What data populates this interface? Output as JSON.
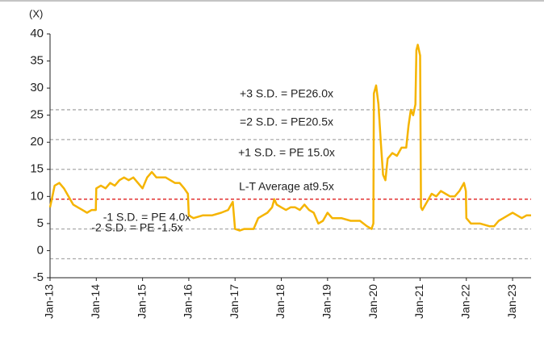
{
  "chart_data": {
    "type": "line",
    "unit_label": "(X)",
    "xlim": [
      2013,
      2023.4
    ],
    "xticks": [
      {
        "value": 2013,
        "label": "Jan-13"
      },
      {
        "value": 2014,
        "label": "Jan-14"
      },
      {
        "value": 2015,
        "label": "Jan-15"
      },
      {
        "value": 2016,
        "label": "Jan-16"
      },
      {
        "value": 2017,
        "label": "Jan-17"
      },
      {
        "value": 2018,
        "label": "Jan-18"
      },
      {
        "value": 2019,
        "label": "Jan-19"
      },
      {
        "value": 2020,
        "label": "Jan-20"
      },
      {
        "value": 2021,
        "label": "Jan-21"
      },
      {
        "value": 2022,
        "label": "Jan-22"
      },
      {
        "value": 2023,
        "label": "Jan-23"
      }
    ],
    "ylim": [
      -5,
      40
    ],
    "yticks": [
      -5,
      0,
      5,
      10,
      15,
      20,
      25,
      30,
      35,
      40
    ],
    "reference_lines": [
      {
        "label": "+3 S.D. = PE26.0x",
        "value": 26.0,
        "color": "#aaaaaa"
      },
      {
        "label": "=2 S.D. = PE20.5x",
        "value": 20.5,
        "color": "#aaaaaa"
      },
      {
        "label": "+1 S.D. = PE 15.0x",
        "value": 15.0,
        "color": "#aaaaaa"
      },
      {
        "label": "L-T Average at9.5x",
        "value": 9.5,
        "color": "#e02020"
      },
      {
        "label": "-1 S.D. = PE 4.0x",
        "value": 4.0,
        "color": "#aaaaaa"
      },
      {
        "label": "-2 S.D. = PE -1.5x",
        "value": -1.5,
        "color": "#aaaaaa"
      }
    ],
    "series": [
      {
        "color": "#f5b400",
        "x": [
          2013.0,
          2013.05,
          2013.1,
          2013.2,
          2013.3,
          2013.4,
          2013.5,
          2013.6,
          2013.7,
          2013.8,
          2013.9,
          2013.99,
          2014.0,
          2014.1,
          2014.2,
          2014.3,
          2014.4,
          2014.5,
          2014.6,
          2014.7,
          2014.8,
          2014.9,
          2015.0,
          2015.1,
          2015.2,
          2015.3,
          2015.4,
          2015.5,
          2015.6,
          2015.7,
          2015.8,
          2015.9,
          2015.98,
          2016.0,
          2016.1,
          2016.3,
          2016.5,
          2016.7,
          2016.85,
          2016.95,
          2017.0,
          2017.1,
          2017.2,
          2017.4,
          2017.5,
          2017.6,
          2017.7,
          2017.8,
          2017.85,
          2017.9,
          2018.0,
          2018.1,
          2018.2,
          2018.3,
          2018.4,
          2018.5,
          2018.6,
          2018.7,
          2018.8,
          2018.9,
          2019.0,
          2019.1,
          2019.3,
          2019.5,
          2019.7,
          2019.85,
          2019.95,
          2019.99,
          2020.0,
          2020.05,
          2020.1,
          2020.15,
          2020.2,
          2020.25,
          2020.3,
          2020.4,
          2020.5,
          2020.6,
          2020.7,
          2020.75,
          2020.8,
          2020.85,
          2020.9,
          2020.92,
          2020.95,
          2021.0,
          2021.02,
          2021.05,
          2021.15,
          2021.25,
          2021.35,
          2021.45,
          2021.55,
          2021.65,
          2021.75,
          2021.85,
          2021.95,
          2021.99,
          2022.0,
          2022.1,
          2022.3,
          2022.5,
          2022.6,
          2022.7,
          2022.8,
          2022.9,
          2023.0,
          2023.1,
          2023.2,
          2023.3,
          2023.4
        ],
        "values": [
          8,
          10,
          12,
          12.5,
          11.5,
          10,
          8.5,
          8,
          7.5,
          7,
          7.5,
          7.5,
          11.5,
          12,
          11.5,
          12.5,
          12,
          13,
          13.5,
          13,
          13.5,
          12.5,
          11.5,
          13.5,
          14.5,
          13.5,
          13.5,
          13.5,
          13,
          12.5,
          12.5,
          11.5,
          10.5,
          6.5,
          6,
          6.5,
          6.5,
          7,
          7.5,
          9,
          4,
          3.7,
          4,
          4,
          6,
          6.5,
          7,
          8,
          9.5,
          8.5,
          8,
          7.5,
          8,
          8,
          7.5,
          8.5,
          7.5,
          7,
          5,
          5.5,
          7,
          6,
          6,
          5.5,
          5.5,
          4.5,
          4,
          5,
          29,
          30.5,
          27,
          20,
          14,
          13,
          17,
          18,
          17.5,
          19,
          19,
          23,
          26,
          25,
          27,
          37,
          38,
          36,
          8,
          7.5,
          9,
          10.5,
          10,
          11,
          10.5,
          10,
          10,
          11,
          12.5,
          11,
          6,
          5,
          5,
          4.5,
          4.5,
          5.5,
          6,
          6.5,
          7,
          6.5,
          6,
          6.5,
          6.5
        ]
      }
    ]
  }
}
